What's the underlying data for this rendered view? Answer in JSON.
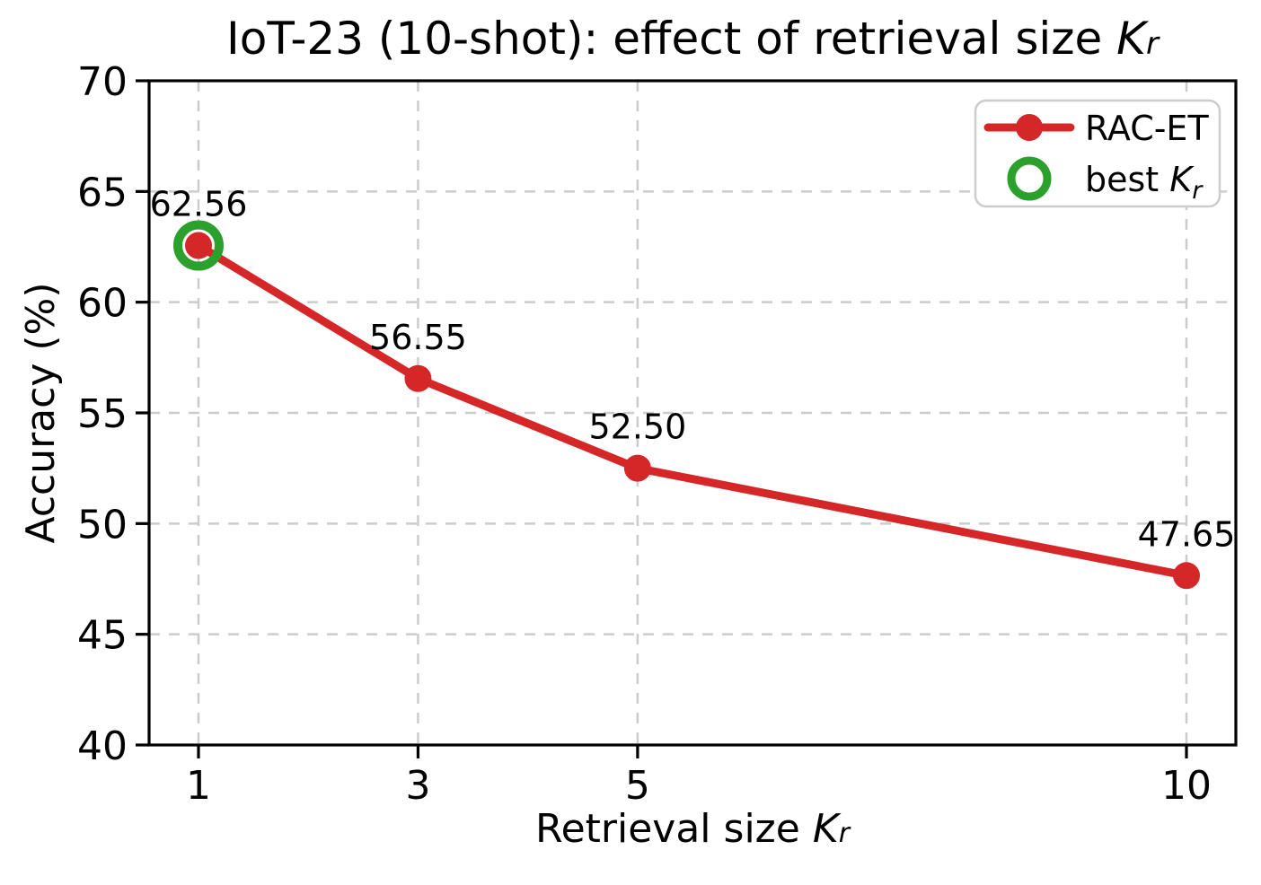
{
  "figure": {
    "title": {
      "prefix": "IoT-23 (10-shot): effect of retrieval size ",
      "var": "K",
      "sub": "r"
    },
    "xlabel": {
      "prefix": "Retrieval size ",
      "var": "K",
      "sub": "r"
    },
    "ylabel": "Accuracy (%)"
  },
  "legend": {
    "position": "upper right",
    "entries": [
      {
        "label": "RAC-ET",
        "marker": "red-line-with-dot",
        "color": "#d62728"
      },
      {
        "prefix": "best ",
        "var": "K",
        "sub": "r",
        "marker": "green-open-circle",
        "color": "#2ca02c"
      }
    ]
  },
  "colors": {
    "series_red": "#d62728",
    "best_green": "#2ca02c",
    "grid": "#cccccc",
    "spine": "#000000",
    "text": "#000000",
    "legend_border": "#cccccc",
    "background": "#ffffff"
  },
  "chart_data": {
    "type": "line",
    "title": "IoT-23 (10-shot): effect of retrieval size K_r",
    "xlabel": "Retrieval size K_r",
    "ylabel": "Accuracy (%)",
    "x": [
      1,
      3,
      5,
      10
    ],
    "series": [
      {
        "name": "RAC-ET",
        "color": "#d62728",
        "y": [
          62.56,
          56.55,
          52.5,
          47.65
        ]
      }
    ],
    "point_labels": [
      "62.56",
      "56.55",
      "52.50",
      "47.65"
    ],
    "best_point": {
      "x": 1,
      "y": 62.56,
      "label": "best K_r",
      "color": "#2ca02c"
    },
    "xticks": [
      1,
      3,
      5,
      10
    ],
    "xtick_labels": [
      "1",
      "3",
      "5",
      "10"
    ],
    "yticks": [
      40,
      45,
      50,
      55,
      60,
      65,
      70
    ],
    "ytick_labels": [
      "40",
      "45",
      "50",
      "55",
      "60",
      "65",
      "70"
    ],
    "xlim": [
      0.55,
      10.45
    ],
    "ylim": [
      40,
      70
    ],
    "grid": true,
    "grid_style": "dashed",
    "legend_position": "upper right"
  }
}
